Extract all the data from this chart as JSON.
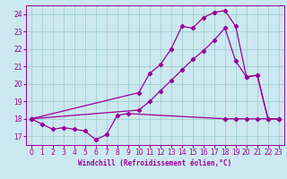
{
  "xlabel": "Windchill (Refroidissement éolien,°C)",
  "xlim": [
    -0.5,
    23.5
  ],
  "ylim": [
    16.5,
    24.5
  ],
  "xticks": [
    0,
    1,
    2,
    3,
    4,
    5,
    6,
    7,
    8,
    9,
    10,
    11,
    12,
    13,
    14,
    15,
    16,
    17,
    18,
    19,
    20,
    21,
    22,
    23
  ],
  "yticks": [
    17,
    18,
    19,
    20,
    21,
    22,
    23,
    24
  ],
  "bg_color": "#cce8f0",
  "line_color": "#990099",
  "grid_color": "#99cccc",
  "line1_x": [
    0,
    1,
    2,
    3,
    4,
    5,
    6,
    7,
    8,
    9,
    18,
    19,
    20,
    21,
    22,
    23
  ],
  "line1_y": [
    18.0,
    17.7,
    17.4,
    17.5,
    17.4,
    17.3,
    16.8,
    17.1,
    18.2,
    18.3,
    18.0,
    18.0,
    18.0,
    18.0,
    18.0,
    18.0
  ],
  "line2_x": [
    0,
    10,
    11,
    12,
    13,
    14,
    15,
    16,
    17,
    18,
    19,
    20,
    21,
    22,
    23
  ],
  "line2_y": [
    18.0,
    19.5,
    20.6,
    21.1,
    22.0,
    23.3,
    23.2,
    23.8,
    24.1,
    24.2,
    23.3,
    20.4,
    20.5,
    18.0,
    18.0
  ],
  "line3_x": [
    0,
    10,
    11,
    12,
    13,
    14,
    15,
    16,
    17,
    18,
    19,
    20,
    21,
    22,
    23
  ],
  "line3_y": [
    18.0,
    18.5,
    19.0,
    19.6,
    20.2,
    20.8,
    21.4,
    21.9,
    22.5,
    23.2,
    21.3,
    20.4,
    20.5,
    18.0,
    18.0
  ]
}
